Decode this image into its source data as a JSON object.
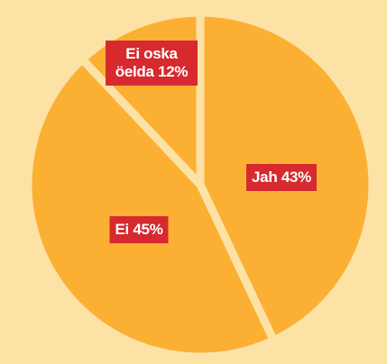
{
  "chart_data": {
    "type": "pie",
    "categories": [
      "Jah",
      "Ei",
      "Ei oska öelda"
    ],
    "values": [
      43,
      45,
      12
    ],
    "value_labels": [
      "43%",
      "45%",
      "12%"
    ],
    "color": "#fbb034"
  }
}
